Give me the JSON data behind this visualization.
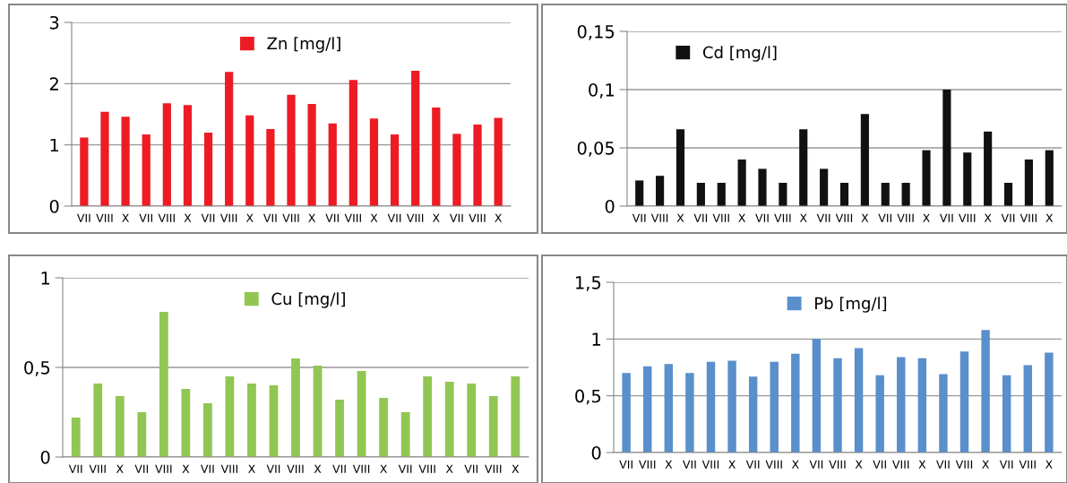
{
  "chart_data": [
    {
      "type": "bar",
      "categories": [
        "VII",
        "VIII",
        "X",
        "VII",
        "VIII",
        "X",
        "VII",
        "VIII",
        "X",
        "VII",
        "VIII",
        "X",
        "VII",
        "VIII",
        "X",
        "VII",
        "VIII",
        "X",
        "VII",
        "VIII",
        "X"
      ],
      "series": [
        {
          "name": "Zn [mg/l]",
          "color": "#ed1c24",
          "values": [
            1.12,
            1.54,
            1.46,
            1.17,
            1.68,
            1.65,
            1.2,
            2.19,
            1.48,
            1.26,
            1.82,
            1.67,
            1.35,
            2.06,
            1.43,
            1.17,
            2.21,
            1.61,
            1.18,
            1.33,
            1.44
          ]
        }
      ],
      "ylim": [
        0,
        3
      ],
      "yticks": [
        0,
        1,
        2,
        3
      ],
      "grid": "y",
      "legend": "top"
    },
    {
      "type": "bar",
      "categories": [
        "VII",
        "VIII",
        "X",
        "VII",
        "VIII",
        "X",
        "VII",
        "VIII",
        "X",
        "VII",
        "VIII",
        "X",
        "VII",
        "VIII",
        "X",
        "VII",
        "VIII",
        "X",
        "VII",
        "VIII",
        "X"
      ],
      "series": [
        {
          "name": "Cd [mg/l]",
          "color": "#111111",
          "values": [
            0.022,
            0.026,
            0.066,
            0.02,
            0.02,
            0.04,
            0.032,
            0.02,
            0.066,
            0.032,
            0.02,
            0.079,
            0.02,
            0.02,
            0.048,
            0.1,
            0.046,
            0.064,
            0.02,
            0.04,
            0.048
          ]
        }
      ],
      "ylim": [
        0,
        0.15
      ],
      "yticks": [
        0,
        {
          "value": 0.05,
          "label": "0,05"
        },
        {
          "value": 0.1,
          "label": "0,1"
        },
        {
          "value": 0.15,
          "label": "0,15"
        }
      ],
      "grid": "y",
      "legend": "top left"
    },
    {
      "type": "bar",
      "categories": [
        "VII",
        "VIII",
        "X",
        "VII",
        "VIII",
        "X",
        "VII",
        "VIII",
        "X",
        "VII",
        "VIII",
        "X",
        "VII",
        "VIII",
        "X",
        "VII",
        "VIII",
        "X",
        "VII",
        "VIII",
        "X"
      ],
      "series": [
        {
          "name": "Cu [mg/l]",
          "color": "#92c653",
          "values": [
            0.22,
            0.41,
            0.34,
            0.25,
            0.81,
            0.38,
            0.3,
            0.45,
            0.41,
            0.4,
            0.55,
            0.51,
            0.32,
            0.48,
            0.33,
            0.25,
            0.45,
            0.42,
            0.41,
            0.34,
            0.45
          ]
        }
      ],
      "ylim": [
        0,
        1
      ],
      "yticks": [
        0,
        {
          "value": 0.5,
          "label": "0,5"
        },
        1
      ],
      "grid": "y",
      "legend": "top"
    },
    {
      "type": "bar",
      "categories": [
        "VII",
        "VIII",
        "X",
        "VII",
        "VIII",
        "X",
        "VII",
        "VIII",
        "X",
        "VII",
        "VIII",
        "X",
        "VII",
        "VIII",
        "X",
        "VII",
        "VIII",
        "X",
        "VII",
        "VIII",
        "X"
      ],
      "series": [
        {
          "name": "Pb [mg/l]",
          "color": "#598fcb",
          "values": [
            0.7,
            0.76,
            0.78,
            0.7,
            0.8,
            0.81,
            0.67,
            0.8,
            0.87,
            1.0,
            0.83,
            0.92,
            0.68,
            0.84,
            0.83,
            0.69,
            0.89,
            1.08,
            0.68,
            0.77,
            0.88
          ]
        }
      ],
      "ylim": [
        0,
        1.5
      ],
      "yticks": [
        0,
        {
          "value": 0.5,
          "label": "0,5"
        },
        1,
        {
          "value": 1.5,
          "label": "1,5"
        }
      ],
      "grid": "y",
      "legend": "top"
    }
  ]
}
